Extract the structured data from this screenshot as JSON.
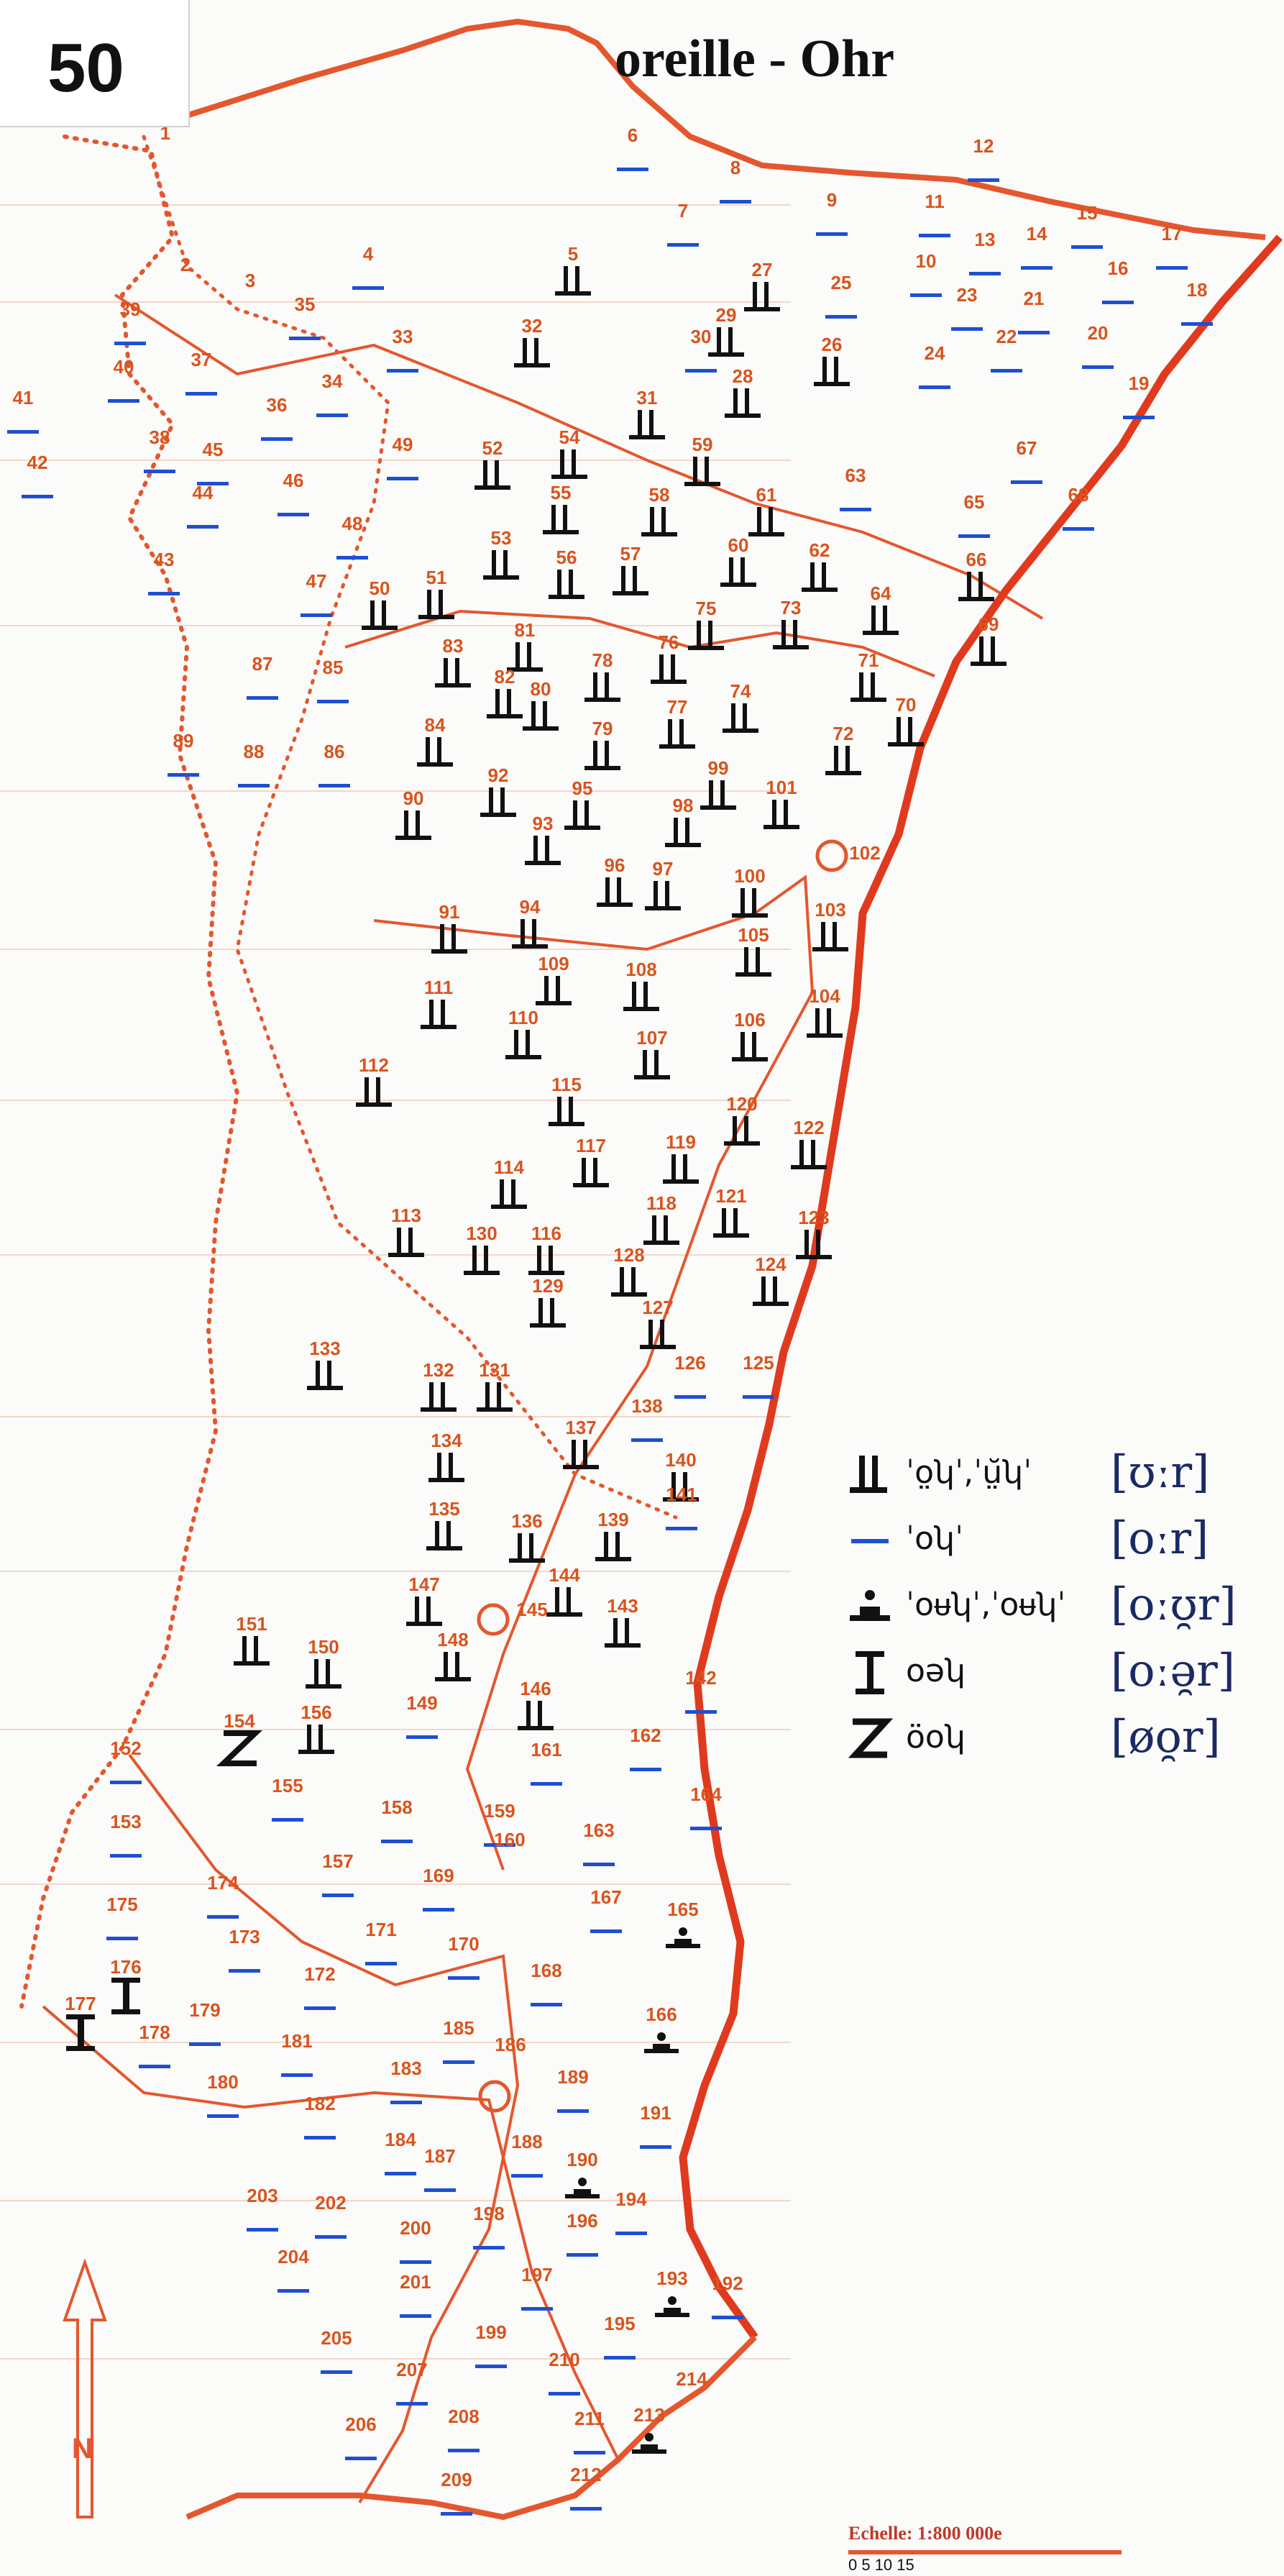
{
  "plate_number": "50",
  "title": "oreille - Ohr",
  "north_label": "N",
  "scale_label": "Echelle: 1:800 000e",
  "scale_ticks": "0 5 10 15",
  "colors": {
    "boundary": "#e4572e",
    "rhine": "#e03a1e",
    "station_number": "#d9541e",
    "symbol": "#111111",
    "dash": "#1f4fd1",
    "ipa": "#1b2a63",
    "grid": "#e9a08a"
  },
  "legend": [
    {
      "symbol": "double-bar-icon",
      "notation": "ˈo̤ʮˈ,ˈṳ̆ʮˈ",
      "ipa": "[ʊːr]"
    },
    {
      "symbol": "dash-icon",
      "notation": "ˈoʮˈ",
      "ipa": "[oːr]"
    },
    {
      "symbol": "dot-base-icon",
      "notation": "ˈoᵾʮˈ,ˈoᵾʮˈ",
      "ipa": "[oːʊ̯r]"
    },
    {
      "symbol": "h-bar-icon",
      "notation": "oəʮ",
      "ipa": "[oːə̯r]"
    },
    {
      "symbol": "z-icon",
      "notation": "öoʮ",
      "ipa": "[øo̯r]"
    }
  ],
  "stations": [
    {
      "n": "1",
      "s": "none"
    },
    {
      "n": "2",
      "s": "none"
    },
    {
      "n": "3",
      "s": "none"
    },
    {
      "n": "4",
      "s": "dash"
    },
    {
      "n": "5",
      "s": "bar"
    },
    {
      "n": "6",
      "s": "dash"
    },
    {
      "n": "7",
      "s": "dash"
    },
    {
      "n": "8",
      "s": "dash"
    },
    {
      "n": "9",
      "s": "dash"
    },
    {
      "n": "10",
      "s": "dash"
    },
    {
      "n": "11",
      "s": "dash"
    },
    {
      "n": "12",
      "s": "dash"
    },
    {
      "n": "13",
      "s": "dash"
    },
    {
      "n": "14",
      "s": "dash"
    },
    {
      "n": "15",
      "s": "dash"
    },
    {
      "n": "16",
      "s": "dash"
    },
    {
      "n": "17",
      "s": "dash"
    },
    {
      "n": "18",
      "s": "dash"
    },
    {
      "n": "19",
      "s": "dash"
    },
    {
      "n": "20",
      "s": "dash"
    },
    {
      "n": "21",
      "s": "dash"
    },
    {
      "n": "22",
      "s": "dash"
    },
    {
      "n": "23",
      "s": "dash"
    },
    {
      "n": "24",
      "s": "dash"
    },
    {
      "n": "25",
      "s": "dash"
    },
    {
      "n": "26",
      "s": "bar"
    },
    {
      "n": "27",
      "s": "bar"
    },
    {
      "n": "28",
      "s": "bar"
    },
    {
      "n": "29",
      "s": "bar"
    },
    {
      "n": "30",
      "s": "dash"
    },
    {
      "n": "31",
      "s": "bar"
    },
    {
      "n": "32",
      "s": "bar"
    },
    {
      "n": "33",
      "s": "dash"
    },
    {
      "n": "34",
      "s": "dash"
    },
    {
      "n": "35",
      "s": "dash"
    },
    {
      "n": "36",
      "s": "dash"
    },
    {
      "n": "37",
      "s": "dash"
    },
    {
      "n": "38",
      "s": "dash"
    },
    {
      "n": "39",
      "s": "dash"
    },
    {
      "n": "40",
      "s": "dash"
    },
    {
      "n": "41",
      "s": "dash"
    },
    {
      "n": "42",
      "s": "dash"
    },
    {
      "n": "43",
      "s": "dash"
    },
    {
      "n": "44",
      "s": "dash"
    },
    {
      "n": "45",
      "s": "dash"
    },
    {
      "n": "46",
      "s": "dash"
    },
    {
      "n": "47",
      "s": "dash"
    },
    {
      "n": "48",
      "s": "dash"
    },
    {
      "n": "49",
      "s": "dash"
    },
    {
      "n": "50",
      "s": "bar"
    },
    {
      "n": "51",
      "s": "bar"
    },
    {
      "n": "52",
      "s": "bar"
    },
    {
      "n": "53",
      "s": "bar"
    },
    {
      "n": "54",
      "s": "bar"
    },
    {
      "n": "55",
      "s": "bar"
    },
    {
      "n": "56",
      "s": "bar"
    },
    {
      "n": "57",
      "s": "bar"
    },
    {
      "n": "58",
      "s": "bar"
    },
    {
      "n": "59",
      "s": "bar"
    },
    {
      "n": "60",
      "s": "bar"
    },
    {
      "n": "61",
      "s": "bar"
    },
    {
      "n": "62",
      "s": "bar"
    },
    {
      "n": "63",
      "s": "dash"
    },
    {
      "n": "64",
      "s": "bar"
    },
    {
      "n": "65",
      "s": "dash"
    },
    {
      "n": "66",
      "s": "bar"
    },
    {
      "n": "67",
      "s": "dash"
    },
    {
      "n": "68",
      "s": "dash"
    },
    {
      "n": "69",
      "s": "bar"
    },
    {
      "n": "70",
      "s": "bar"
    },
    {
      "n": "71",
      "s": "bar"
    },
    {
      "n": "72",
      "s": "bar"
    },
    {
      "n": "73",
      "s": "bar"
    },
    {
      "n": "74",
      "s": "bar"
    },
    {
      "n": "75",
      "s": "bar"
    },
    {
      "n": "76",
      "s": "bar"
    },
    {
      "n": "77",
      "s": "bar"
    },
    {
      "n": "78",
      "s": "bar"
    },
    {
      "n": "79",
      "s": "bar"
    },
    {
      "n": "80",
      "s": "bar"
    },
    {
      "n": "81",
      "s": "bar"
    },
    {
      "n": "82",
      "s": "bar"
    },
    {
      "n": "83",
      "s": "bar"
    },
    {
      "n": "84",
      "s": "bar"
    },
    {
      "n": "85",
      "s": "dash"
    },
    {
      "n": "86",
      "s": "dash"
    },
    {
      "n": "87",
      "s": "dash"
    },
    {
      "n": "88",
      "s": "dash"
    },
    {
      "n": "89",
      "s": "dash"
    },
    {
      "n": "90",
      "s": "bar"
    },
    {
      "n": "91",
      "s": "bar"
    },
    {
      "n": "92",
      "s": "bar"
    },
    {
      "n": "93",
      "s": "bar"
    },
    {
      "n": "94",
      "s": "bar"
    },
    {
      "n": "95",
      "s": "bar"
    },
    {
      "n": "96",
      "s": "bar"
    },
    {
      "n": "97",
      "s": "bar"
    },
    {
      "n": "98",
      "s": "bar"
    },
    {
      "n": "99",
      "s": "bar"
    },
    {
      "n": "100",
      "s": "bar"
    },
    {
      "n": "101",
      "s": "bar"
    },
    {
      "n": "102",
      "s": "none"
    },
    {
      "n": "103",
      "s": "bar"
    },
    {
      "n": "104",
      "s": "bar"
    },
    {
      "n": "105",
      "s": "bar"
    },
    {
      "n": "106",
      "s": "bar"
    },
    {
      "n": "107",
      "s": "bar"
    },
    {
      "n": "108",
      "s": "bar"
    },
    {
      "n": "109",
      "s": "bar"
    },
    {
      "n": "110",
      "s": "bar"
    },
    {
      "n": "111",
      "s": "bar"
    },
    {
      "n": "112",
      "s": "bar"
    },
    {
      "n": "113",
      "s": "bar"
    },
    {
      "n": "114",
      "s": "bar"
    },
    {
      "n": "115",
      "s": "bar"
    },
    {
      "n": "116",
      "s": "bar"
    },
    {
      "n": "117",
      "s": "bar"
    },
    {
      "n": "118",
      "s": "bar"
    },
    {
      "n": "119",
      "s": "bar"
    },
    {
      "n": "120",
      "s": "bar"
    },
    {
      "n": "121",
      "s": "bar"
    },
    {
      "n": "122",
      "s": "bar"
    },
    {
      "n": "123",
      "s": "bar"
    },
    {
      "n": "124",
      "s": "bar"
    },
    {
      "n": "125",
      "s": "dash"
    },
    {
      "n": "126",
      "s": "dash"
    },
    {
      "n": "127",
      "s": "bar"
    },
    {
      "n": "128",
      "s": "bar"
    },
    {
      "n": "129",
      "s": "bar"
    },
    {
      "n": "130",
      "s": "bar"
    },
    {
      "n": "131",
      "s": "bar"
    },
    {
      "n": "132",
      "s": "bar"
    },
    {
      "n": "133",
      "s": "bar"
    },
    {
      "n": "134",
      "s": "bar"
    },
    {
      "n": "135",
      "s": "bar"
    },
    {
      "n": "136",
      "s": "bar"
    },
    {
      "n": "137",
      "s": "bar"
    },
    {
      "n": "138",
      "s": "dash"
    },
    {
      "n": "139",
      "s": "bar"
    },
    {
      "n": "140",
      "s": "bar"
    },
    {
      "n": "141",
      "s": "dash"
    },
    {
      "n": "142",
      "s": "dash"
    },
    {
      "n": "143",
      "s": "bar"
    },
    {
      "n": "144",
      "s": "bar"
    },
    {
      "n": "145",
      "s": "none"
    },
    {
      "n": "146",
      "s": "bar"
    },
    {
      "n": "147",
      "s": "bar"
    },
    {
      "n": "148",
      "s": "bar"
    },
    {
      "n": "149",
      "s": "dash"
    },
    {
      "n": "150",
      "s": "bar"
    },
    {
      "n": "151",
      "s": "bar"
    },
    {
      "n": "152",
      "s": "dash"
    },
    {
      "n": "153",
      "s": "dash"
    },
    {
      "n": "154",
      "s": "z"
    },
    {
      "n": "155",
      "s": "dash"
    },
    {
      "n": "156",
      "s": "bar"
    },
    {
      "n": "157",
      "s": "dash"
    },
    {
      "n": "158",
      "s": "dash"
    },
    {
      "n": "159",
      "s": "dash"
    },
    {
      "n": "160",
      "s": "none"
    },
    {
      "n": "161",
      "s": "dash"
    },
    {
      "n": "162",
      "s": "dash"
    },
    {
      "n": "163",
      "s": "dash"
    },
    {
      "n": "164",
      "s": "dash"
    },
    {
      "n": "165",
      "s": "dot"
    },
    {
      "n": "166",
      "s": "dot"
    },
    {
      "n": "167",
      "s": "dash"
    },
    {
      "n": "168",
      "s": "dash"
    },
    {
      "n": "169",
      "s": "dash"
    },
    {
      "n": "170",
      "s": "dash"
    },
    {
      "n": "171",
      "s": "dash"
    },
    {
      "n": "172",
      "s": "dash"
    },
    {
      "n": "173",
      "s": "dash"
    },
    {
      "n": "174",
      "s": "dash"
    },
    {
      "n": "175",
      "s": "dash"
    },
    {
      "n": "176",
      "s": "h"
    },
    {
      "n": "177",
      "s": "h"
    },
    {
      "n": "178",
      "s": "dash"
    },
    {
      "n": "179",
      "s": "dash"
    },
    {
      "n": "180",
      "s": "dash"
    },
    {
      "n": "181",
      "s": "dash"
    },
    {
      "n": "182",
      "s": "dash"
    },
    {
      "n": "183",
      "s": "dash"
    },
    {
      "n": "184",
      "s": "dash"
    },
    {
      "n": "185",
      "s": "dash"
    },
    {
      "n": "186",
      "s": "none"
    },
    {
      "n": "187",
      "s": "dash"
    },
    {
      "n": "188",
      "s": "dash"
    },
    {
      "n": "189",
      "s": "dash"
    },
    {
      "n": "190",
      "s": "dot"
    },
    {
      "n": "191",
      "s": "dash"
    },
    {
      "n": "192",
      "s": "dash"
    },
    {
      "n": "193",
      "s": "dot"
    },
    {
      "n": "194",
      "s": "dash"
    },
    {
      "n": "195",
      "s": "dash"
    },
    {
      "n": "196",
      "s": "dash"
    },
    {
      "n": "197",
      "s": "dash"
    },
    {
      "n": "198",
      "s": "dash"
    },
    {
      "n": "199",
      "s": "dash"
    },
    {
      "n": "200",
      "s": "dash"
    },
    {
      "n": "201",
      "s": "dash"
    },
    {
      "n": "202",
      "s": "dash"
    },
    {
      "n": "203",
      "s": "dash"
    },
    {
      "n": "204",
      "s": "dash"
    },
    {
      "n": "205",
      "s": "dash"
    },
    {
      "n": "206",
      "s": "dash"
    },
    {
      "n": "207",
      "s": "dash"
    },
    {
      "n": "208",
      "s": "dash"
    },
    {
      "n": "209",
      "s": "dash"
    },
    {
      "n": "210",
      "s": "dash"
    },
    {
      "n": "211",
      "s": "dash"
    },
    {
      "n": "212",
      "s": "dash"
    },
    {
      "n": "213",
      "s": "dot"
    },
    {
      "n": "214",
      "s": "none"
    }
  ]
}
